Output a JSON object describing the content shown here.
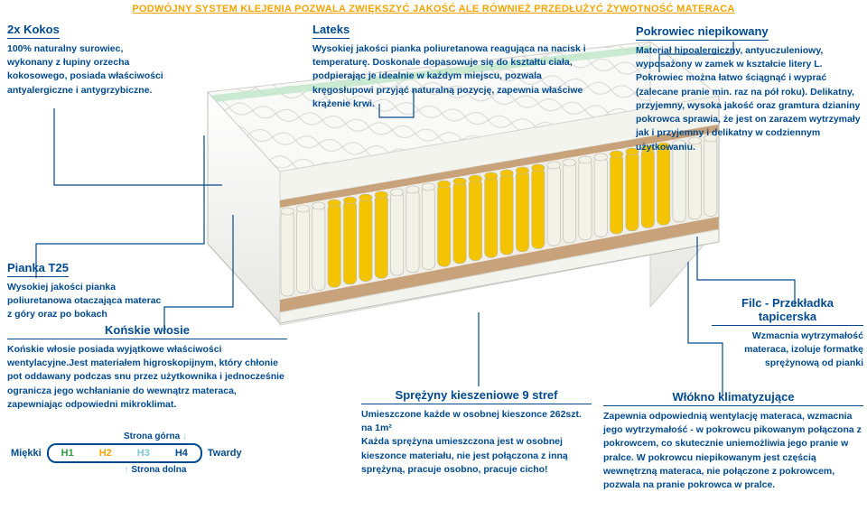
{
  "headline": {
    "text": "PODWÓJNY SYSTEM KLEJENIA POZWALA ZWIĘKSZYĆ JAKOŚĆ ALE RÓWNIEŻ PRZEDŁUŻYĆ ŻYWOTNOŚĆ MATERACA",
    "color": "#f5a400"
  },
  "callouts": {
    "kokos": {
      "title": "2x Kokos",
      "body": "100% naturalny surowiec, wykonany z łupiny orzecha kokosowego, posiada właściwości antyalergiczne i antygrzybiczne."
    },
    "lateks": {
      "title": "Lateks",
      "body": "Wysokiej jakości pianka poliuretanowa reagująca na nacisk i temperaturę. Doskonale dopasowuje się do kształtu ciała, podpierając je idealnie w każdym miejscu, pozwala kręgosłupowi przyjąć naturalną pozycję, zapewnia właściwe krążenie krwi."
    },
    "pokrowiec": {
      "title": "Pokrowiec niepikowany",
      "body": "Materiał hipoalergiczny, antyuczuleniowy, wyposażony w zamek w kształcie litery L. Pokrowiec można łatwo ściągnąć i wyprać (zalecane pranie min. raz na pół roku). Delikatny, przyjemny, wysoka jakość oraz gramtura dzianiny pokrowca sprawia, że jest on zarazem wytrzymały jak i przyjemny i delikatny w codziennym użytkowaniu."
    },
    "pianka": {
      "title": "Pianka T25",
      "body": "Wysokiej jakości pianka poliuretanowa otaczająca materac z góry oraz po bokach"
    },
    "konskie": {
      "title": "Końskie włosie",
      "body": "Końskie włosie posiada wyjątkowe właściwości wentylacyjne.Jest materiałem higroskopijnym, który chłonie pot oddawany podczas snu przez użytkownika i jednocześnie ogranicza jego wchłanianie do wewnątrz materaca, zapewniając odpowiedni mikroklimat."
    },
    "sprezyny": {
      "title": "Sprężyny kieszeniowe 9 stref",
      "body": "Umieszczone każde w osobnej kieszonce 262szt. na 1m²\nKażda sprężyna umieszczona jest w osobnej kieszonce materiału, nie jest połączona z inną sprężyną, pracuje osobno, pracuje cicho!"
    },
    "filc": {
      "title": "Filc - Przekładka tapicerska",
      "body": "Wzmacnia wytrzymałość materaca, izoluje formatkę sprężynową od pianki"
    },
    "wlokno": {
      "title": "Włókno klimatyzujące",
      "body": "Zapewnia odpowiednią wentylację materaca, wzmacnia jego wytrzymałość - w pokrowcu pikowanym połączona z pokrowcem, co skutecznie uniemożliwia jego pranie w pralce. W pokrowcu niepikowanym jest częścią wewnętrzną materaca, nie połączone z pokrowcem, pozwala na pranie pokrowca w pralce."
    }
  },
  "hardness": {
    "top_label": "Strona górna",
    "bottom_label": "Strona dolna",
    "left_label": "Miękki",
    "right_label": "Twardy",
    "arrow_down": "↓",
    "arrow_up": "↑",
    "cells": [
      {
        "label": "H1",
        "color": "#2e9b3e"
      },
      {
        "label": "H2",
        "color": "#f5a400"
      },
      {
        "label": "H3",
        "color": "#7fc6d6"
      },
      {
        "label": "H4",
        "color": "#004a8f"
      }
    ]
  },
  "palette": {
    "brand_blue": "#004a8f",
    "accent_orange": "#f5a400",
    "spring_white": "#f2f2e8",
    "spring_yellow": "#f5c400",
    "spring_teal": "#7fc6d6",
    "foam_white": "#f8f8f6",
    "edge_gray": "#c8c8c4",
    "cork": "#c7a27a"
  },
  "mattress": {
    "rows_front": 1,
    "springs_per_row": 28,
    "zone_pattern": [
      "w",
      "w",
      "w",
      "y",
      "y",
      "y",
      "y",
      "w",
      "w",
      "w",
      "y",
      "y",
      "y",
      "y",
      "y",
      "y",
      "y",
      "w",
      "w",
      "w",
      "w",
      "y",
      "y",
      "y",
      "y",
      "w",
      "w",
      "w"
    ]
  }
}
